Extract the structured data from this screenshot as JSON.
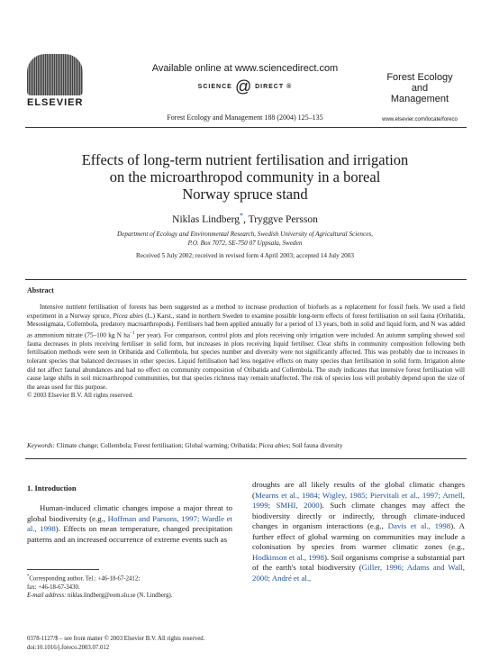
{
  "header": {
    "available_online": "Available online at www.sciencedirect.com",
    "sd_left": "SCIENCE",
    "sd_at": "@",
    "sd_right": "DIRECT",
    "sd_mark": "®",
    "publisher": "ELSEVIER",
    "journal_ref": "Forest Ecology and Management 188 (2004) 125–135",
    "journal_line1": "Forest Ecology",
    "journal_line2": "and",
    "journal_line3": "Management",
    "journal_url": "www.elsevier.com/locate/foreco"
  },
  "article": {
    "title_line1": "Effects of long-term nutrient fertilisation and irrigation",
    "title_line2": "on the microarthropod community in a boreal",
    "title_line3": "Norway spruce stand",
    "author1": "Niklas Lindberg",
    "author1_mark": "*",
    "author_sep": ", ",
    "author2": "Tryggve Persson",
    "affil_line1": "Department of Ecology and Environmental Research, Swedish University of Agricultural Sciences,",
    "affil_line2": "P.O. Box 7072, SE-750 07 Uppsala, Sweden",
    "received": "Received 5 July 2002; received in revised form 4 April 2003; accepted 14 July 2003"
  },
  "abstract": {
    "heading": "Abstract",
    "p1": "Intensive nutrient fertilisation of forests has been suggested as a method to increase production of biofuels as a replacement for fossil fuels. We used a field experiment in a Norway spruce, ",
    "species": "Picea abies",
    "p2": " (L.) Karst., stand in northern Sweden to examine possible long-term effects of forest fertilisation on soil fauna (Oribatida, Mesostigmata, Collembola, predatory macroarthropods). Fertilisers had been applied annually for a period of 13 years, both in solid and liquid form, and N was added as ammonium nitrate (75–100 kg N ha",
    "unit_sup": "−1",
    "p3": " per year). For comparison, control plots and plots receiving only irrigation were included. An autumn sampling showed soil fauna decreases in plots receiving fertiliser in solid form, but increases in plots receiving liquid fertiliser. Clear shifts in community composition following both fertilisation methods were seen in Oribatida and Collembola, but species number and diversity were not significantly affected. This was probably due to increases in tolerant species that balanced decreases in other species. Liquid fertilisation had less negative effects on many species than fertilisation in solid form. Irrigation alone did not affect faunal abundances and had no effect on community composition of Oribatida and Collembola. The study indicates that intensive forest fertilisation will cause large shifts in soil microarthropod communities, but that species richness may remain unaffected. The risk of species loss will probably depend upon the size of the areas used for this purpose.",
    "copyright": "© 2003 Elsevier B.V. All rights reserved.",
    "keywords_label": "Keywords:",
    "keywords_a": " Climate change; Collembola; Forest fertilisation; Global warming; Oribatida; ",
    "keywords_species": "Picea abies",
    "keywords_b": "; Soil fauna diversity"
  },
  "body": {
    "section_heading": "1.  Introduction",
    "left_a": "Human-induced climatic changes impose a major threat to global biodiversity (e.g., ",
    "left_ref1": "Hoffman and Parsons, 1997; Wardle et al., 1998",
    "left_b": "). Effects on mean temperature, changed precipitation patterns and an increased occurrence of extreme events such as",
    "right_a": "droughts are all likely results of the global climatic changes (",
    "right_ref1": "Mearns et al., 1984; Wigley, 1985; Piervitali et al., 1997; Arnell, 1999; SMHI, 2000",
    "right_b": "). Such climate changes may affect the biodiversity directly or indirectly, through climate-induced changes in organism interactions (e.g., ",
    "right_ref2": "Davis et al., 1998",
    "right_c": "). A further effect of global warming on communities may include a colonisation by species from warmer climatic zones (e.g., ",
    "right_ref3": "Hodkinson et al., 1998",
    "right_d": "). Soil organisms comprise a substantial part of the earth's total biodiversity (",
    "right_ref4": "Giller, 1996; Adams and Wall, 2000; André et al.,",
    "right_e": ""
  },
  "footnote": {
    "mark": "*",
    "corresponding": "Corresponding author. Tel.: +46-18-67-2412;",
    "fax": "fax: +46-18-67-3430.",
    "email_label": "E-mail address:",
    "email_value": " niklas.lindberg@eom.slu.se (N. Lindberg)."
  },
  "bottom": {
    "issn": "0378-1127/$ – see front matter © 2003 Elsevier B.V. All rights reserved.",
    "doi": "doi:10.1016/j.foreco.2003.07.012"
  }
}
